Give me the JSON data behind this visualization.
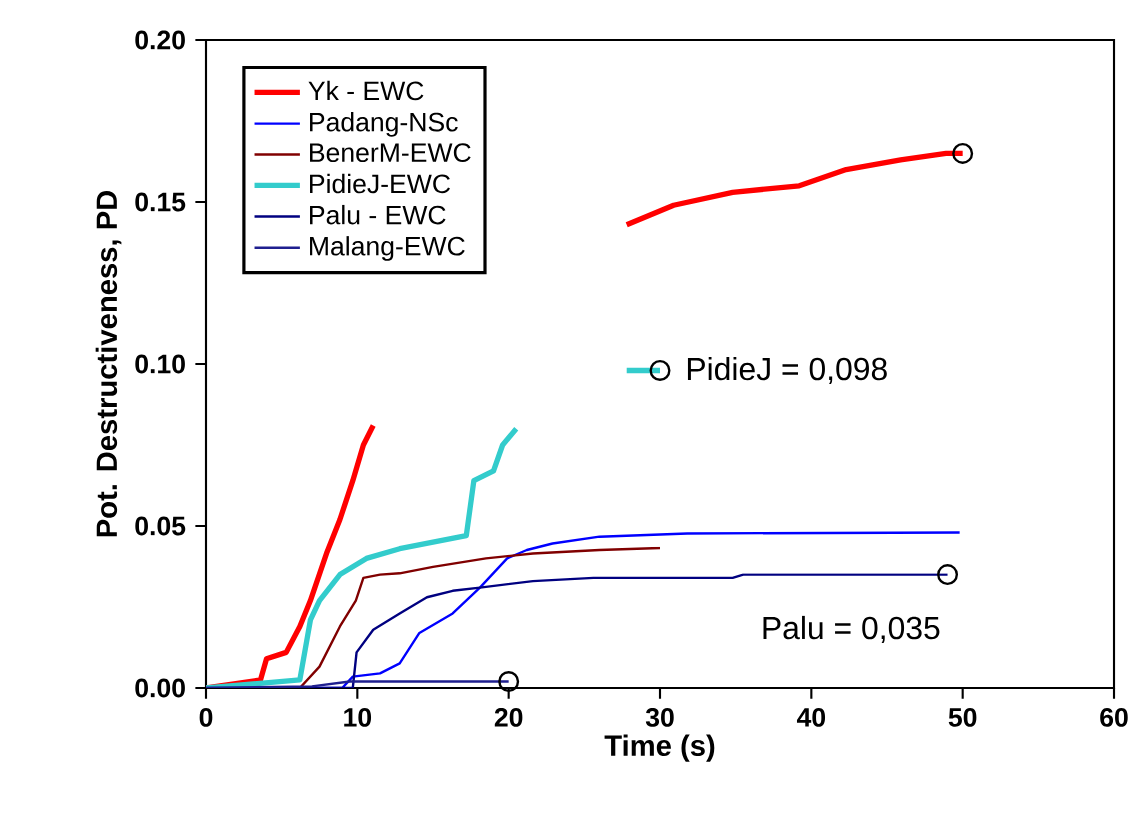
{
  "chart_data": {
    "type": "line",
    "xlabel": "Time (s)",
    "ylabel": "Pot. Destructiveness, PD",
    "xlim": [
      0,
      60
    ],
    "ylim": [
      0,
      0.2
    ],
    "xticks": [
      0,
      10,
      20,
      30,
      40,
      50,
      60
    ],
    "yticks": [
      {
        "value": 0,
        "label": "0.00"
      },
      {
        "value": 0.05,
        "label": "0.05"
      },
      {
        "value": 0.1,
        "label": "0.10"
      },
      {
        "value": 0.15,
        "label": "0.15"
      },
      {
        "value": 0.2,
        "label": "0.20"
      }
    ],
    "grid": false,
    "legend": "top left",
    "marker": "none",
    "series": [
      {
        "name": "Yk - EWC",
        "color": "#ff0000",
        "x": [
          0,
          3.6,
          4.0,
          5.3,
          6.2,
          6.9,
          8.0,
          8.85,
          9.7,
          10.4,
          11.05,
          20,
          27.8,
          30.9,
          34.8,
          39.2,
          42.3,
          45.9,
          48.9,
          50
        ],
        "values": [
          0,
          0.0025,
          0.009,
          0.011,
          0.019,
          0.027,
          0.042,
          0.052,
          0.064,
          0.075,
          0.081,
          null,
          0.143,
          0.149,
          0.153,
          0.155,
          0.16,
          0.163,
          0.165,
          0.165
        ]
      },
      {
        "name": "Padang-NSc",
        "color": "#0000ff",
        "x": [
          0,
          9.0,
          9.7,
          11.5,
          12.8,
          14.1,
          16.3,
          18.1,
          19.9,
          21.2,
          22.9,
          26.0,
          31.8,
          49.8
        ],
        "values": [
          0,
          0,
          0.0035,
          0.0045,
          0.0076,
          0.017,
          0.023,
          0.031,
          0.04,
          0.0426,
          0.0446,
          0.0467,
          0.0477,
          0.048
        ]
      },
      {
        "name": "BenerM-EWC",
        "color": "#800000",
        "x": [
          0,
          6.2,
          7.5,
          8.85,
          9.9,
          10.4,
          11.5,
          12.8,
          15.0,
          18.5,
          21.6,
          26.0,
          30.0
        ],
        "values": [
          0,
          0,
          0.0066,
          0.019,
          0.027,
          0.034,
          0.035,
          0.0354,
          0.0374,
          0.04,
          0.0415,
          0.0426,
          0.0432
        ]
      },
      {
        "name": "PidieJ-EWC",
        "color": "#33cccc",
        "x": [
          0,
          6.2,
          6.9,
          7.5,
          8.85,
          10.6,
          12.8,
          15.0,
          17.2,
          17.7,
          19.0,
          19.6,
          20.5,
          24,
          27.8,
          30
        ],
        "values": [
          0,
          0.0025,
          0.021,
          0.027,
          0.035,
          0.04,
          0.043,
          0.045,
          0.047,
          0.064,
          0.067,
          0.075,
          0.08,
          null,
          0.098,
          0.098
        ]
      },
      {
        "name": "Palu - EWC",
        "color": "#000080",
        "x": [
          0,
          9.7,
          9.95,
          11.05,
          12.8,
          14.6,
          16.3,
          18.1,
          21.6,
          25.6,
          34.8,
          35.5,
          49
        ],
        "values": [
          0,
          0,
          0.011,
          0.018,
          0.023,
          0.028,
          0.03,
          0.031,
          0.033,
          0.034,
          0.034,
          0.035,
          0.035
        ]
      },
      {
        "name": "Malang-EWC",
        "color": "#1f1f8f",
        "x": [
          0,
          7,
          9.5,
          20
        ],
        "values": [
          0,
          0.0005,
          0.002,
          0.002
        ]
      },
      {
        "type": "scatter",
        "marker": "circle",
        "color": "#000000",
        "x": [
          50,
          30,
          49,
          20
        ],
        "values": [
          0.165,
          0.098,
          0.035,
          0.002
        ]
      }
    ],
    "annotations": [
      {
        "text": "PidieJ = 0,098",
        "x": 30,
        "y": 0.098
      },
      {
        "text": "Palu = 0,035",
        "x": 49,
        "y": 0.035
      }
    ]
  }
}
